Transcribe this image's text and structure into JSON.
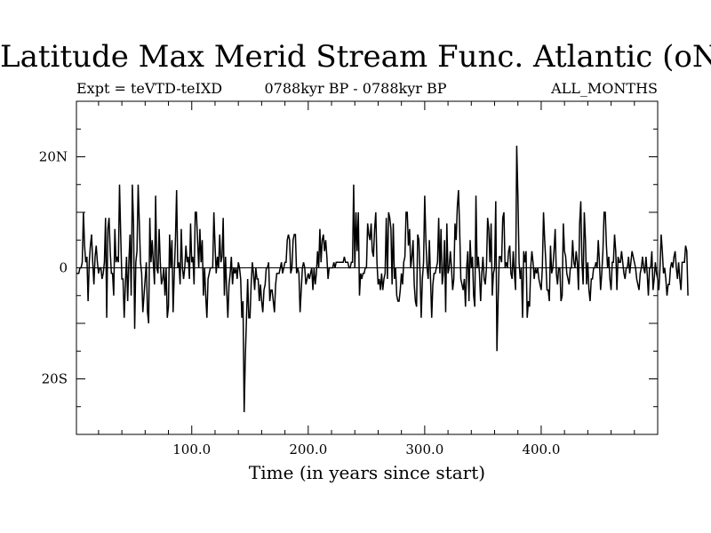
{
  "chart_data": {
    "type": "line",
    "title": "Latitude Max Merid Stream Func. Atlantic (oN)",
    "subtitle_left": "Expt = teVTD-teIXD",
    "subtitle_center": "0788kyr BP - 0788kyr BP",
    "subtitle_right": "ALL_MONTHS",
    "xlabel": "Time (in years since start)",
    "ylabel": "",
    "xlim": [
      1,
      500
    ],
    "ylim": [
      -30,
      30
    ],
    "x_ticks": [
      100,
      200,
      300,
      400
    ],
    "x_tick_labels": [
      "100.0",
      "200.0",
      "300.0",
      "400.0"
    ],
    "y_ticks": [
      20,
      0,
      -20
    ],
    "y_tick_labels": [
      "20N",
      "0",
      "20S"
    ],
    "zero_line": true,
    "grid": false,
    "series": [
      {
        "color": "#000000",
        "x_start": 1,
        "x_step": 1,
        "values": [
          -1,
          -1,
          -1,
          0,
          0,
          1,
          10,
          4,
          1,
          2,
          -6,
          1,
          4,
          6,
          1,
          -3,
          2,
          4,
          1,
          -1,
          0,
          0,
          -2,
          -1,
          1,
          9,
          -9,
          7,
          9,
          3,
          -1,
          -1,
          -5,
          7,
          1,
          2,
          1,
          15,
          6,
          -2,
          -2,
          -9,
          -3,
          2,
          -6,
          1,
          6,
          -5,
          15,
          8,
          -11,
          1,
          3,
          15,
          8,
          1,
          -1,
          -8,
          -5,
          -2,
          1,
          -8,
          -10,
          9,
          1,
          5,
          1,
          -3,
          13,
          0,
          -1,
          7,
          1,
          -3,
          -2,
          0,
          -5,
          0,
          -9,
          -7,
          6,
          0,
          5,
          -8,
          -1,
          5,
          14,
          0,
          1,
          -3,
          7,
          0,
          -2,
          0,
          4,
          1,
          2,
          -2,
          8,
          1,
          2,
          -3,
          10,
          10,
          5,
          0,
          7,
          1,
          5,
          -5,
          0,
          -5,
          -9,
          -2,
          -1,
          0,
          0,
          0,
          10,
          4,
          -1,
          2,
          0,
          6,
          1,
          2,
          9,
          -5,
          2,
          -4,
          -9,
          -3,
          -1,
          2,
          -3,
          0,
          -1,
          0,
          -2,
          1,
          0,
          -2,
          -9,
          -6,
          -26,
          -16,
          -9,
          -2,
          -9,
          -9,
          -3,
          1,
          -1,
          -4,
          0,
          -2,
          -2,
          -6,
          -3,
          -6,
          -8,
          -4,
          -3,
          0,
          0,
          1,
          -6,
          -4,
          -4,
          -6,
          -8,
          -3,
          -1,
          -1,
          -1,
          0,
          1,
          -1,
          0,
          1,
          1,
          5,
          6,
          5,
          -1,
          0,
          5,
          6,
          6,
          -1,
          0,
          -1,
          -8,
          -4,
          0,
          1,
          0,
          -3,
          -2,
          -1,
          -2,
          -1,
          0,
          -4,
          0,
          -3,
          -1,
          3,
          0,
          7,
          1,
          5,
          6,
          3,
          5,
          2,
          -2,
          0,
          0,
          0,
          0,
          1,
          0,
          1,
          1,
          1,
          1,
          1,
          1,
          1,
          2,
          1,
          1,
          1,
          0,
          0,
          1,
          1,
          15,
          0,
          10,
          3,
          10,
          -5,
          -1,
          -2,
          -1,
          -1,
          0,
          0,
          8,
          6,
          5,
          8,
          3,
          2,
          7,
          10,
          1,
          -3,
          -2,
          -4,
          -1,
          -4,
          -2,
          -1,
          9,
          -2,
          10,
          9,
          7,
          -3,
          8,
          -2,
          0,
          -5,
          -6,
          -6,
          -4,
          -1,
          -3,
          1,
          2,
          10,
          10,
          4,
          7,
          0,
          2,
          5,
          -3,
          -6,
          -7,
          6,
          5,
          -1,
          -9,
          -2,
          1,
          13,
          5,
          0,
          -2,
          5,
          -2,
          -9,
          -3,
          -1,
          -1,
          0,
          1,
          9,
          -1,
          7,
          -3,
          -1,
          5,
          -8,
          8,
          -1,
          0,
          3,
          0,
          -4,
          -2,
          8,
          5,
          11,
          14,
          7,
          -2,
          -3,
          -4,
          -2,
          -7,
          0,
          3,
          -6,
          5,
          0,
          2,
          -5,
          -7,
          13,
          0,
          2,
          -1,
          -6,
          -1,
          2,
          -2,
          -3,
          0,
          9,
          7,
          1,
          8,
          -5,
          -1,
          0,
          12,
          -15,
          -6,
          2,
          2,
          1,
          9,
          10,
          0,
          1,
          0,
          3,
          4,
          -1,
          -2,
          3,
          -1,
          -4,
          22,
          13,
          1,
          -2,
          0,
          -9,
          3,
          1,
          3,
          -9,
          -6,
          -7,
          0,
          3,
          1,
          -2,
          0,
          -1,
          0,
          -2,
          -3,
          -4,
          0,
          10,
          5,
          1,
          -4,
          -4,
          -6,
          4,
          -1,
          0,
          3,
          7,
          -1,
          -3,
          0,
          0,
          -6,
          -5,
          8,
          3,
          2,
          -1,
          -2,
          -3,
          0,
          0,
          5,
          1,
          0,
          3,
          1,
          -4,
          8,
          12,
          1,
          -3,
          10,
          5,
          -3,
          1,
          -4,
          -6,
          -2,
          -2,
          0,
          0,
          1,
          0,
          5,
          1,
          -4,
          -1,
          3,
          10,
          10,
          4,
          0,
          2,
          -2,
          -4,
          1,
          1,
          6,
          3,
          -4,
          2,
          1,
          1,
          3,
          1,
          -1,
          -2,
          0,
          0,
          2,
          -1,
          1,
          3,
          2,
          1,
          0,
          -2,
          -3,
          -4,
          -1,
          0,
          2,
          0,
          -1,
          2,
          -1,
          -5,
          0,
          0,
          3,
          -4,
          -2,
          1,
          -1,
          -2,
          -4,
          0,
          6,
          3,
          -1,
          0,
          -2,
          -5,
          -3,
          -3,
          0,
          1,
          0,
          2,
          3,
          0,
          -2,
          1,
          -2,
          -4,
          1,
          1,
          1,
          4,
          3,
          -5
        ]
      }
    ]
  }
}
